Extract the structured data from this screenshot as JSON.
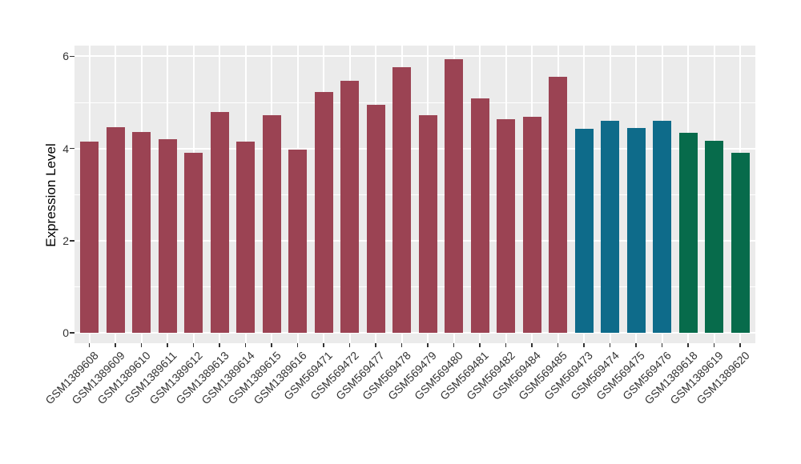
{
  "chart_data": {
    "type": "bar",
    "title": "",
    "xlabel": "",
    "ylabel": "Expression Level",
    "ylim": [
      0,
      6.23
    ],
    "yticks": [
      0,
      2,
      4,
      6
    ],
    "yticks_minor": [
      1,
      3,
      5
    ],
    "grid": true,
    "legend": false,
    "panel_bg": "#EBEBEB",
    "grid_color": "#FFFFFF",
    "categories": [
      "GSM1389608",
      "GSM1389609",
      "GSM1389610",
      "GSM1389611",
      "GSM1389612",
      "GSM1389613",
      "GSM1389614",
      "GSM1389615",
      "GSM1389616",
      "GSM569471",
      "GSM569472",
      "GSM569477",
      "GSM569478",
      "GSM569479",
      "GSM569480",
      "GSM569481",
      "GSM569482",
      "GSM569484",
      "GSM569485",
      "GSM569473",
      "GSM569474",
      "GSM569475",
      "GSM569476",
      "GSM1389618",
      "GSM1389619",
      "GSM1389620"
    ],
    "values": [
      4.15,
      4.46,
      4.35,
      4.2,
      3.9,
      4.79,
      4.15,
      4.73,
      3.97,
      5.22,
      5.47,
      4.94,
      5.77,
      4.72,
      5.94,
      5.09,
      4.64,
      4.69,
      5.55,
      4.43,
      4.6,
      4.45,
      4.6,
      4.34,
      4.17,
      3.9
    ],
    "bar_groups": [
      "group1",
      "group1",
      "group1",
      "group1",
      "group1",
      "group1",
      "group1",
      "group1",
      "group1",
      "group1",
      "group1",
      "group1",
      "group1",
      "group1",
      "group1",
      "group1",
      "group1",
      "group1",
      "group1",
      "group2",
      "group2",
      "group2",
      "group2",
      "group3",
      "group3",
      "group3"
    ],
    "group_colors": {
      "group1": "#9B4353",
      "group2": "#0E6B8A",
      "group3": "#076B4B"
    }
  }
}
